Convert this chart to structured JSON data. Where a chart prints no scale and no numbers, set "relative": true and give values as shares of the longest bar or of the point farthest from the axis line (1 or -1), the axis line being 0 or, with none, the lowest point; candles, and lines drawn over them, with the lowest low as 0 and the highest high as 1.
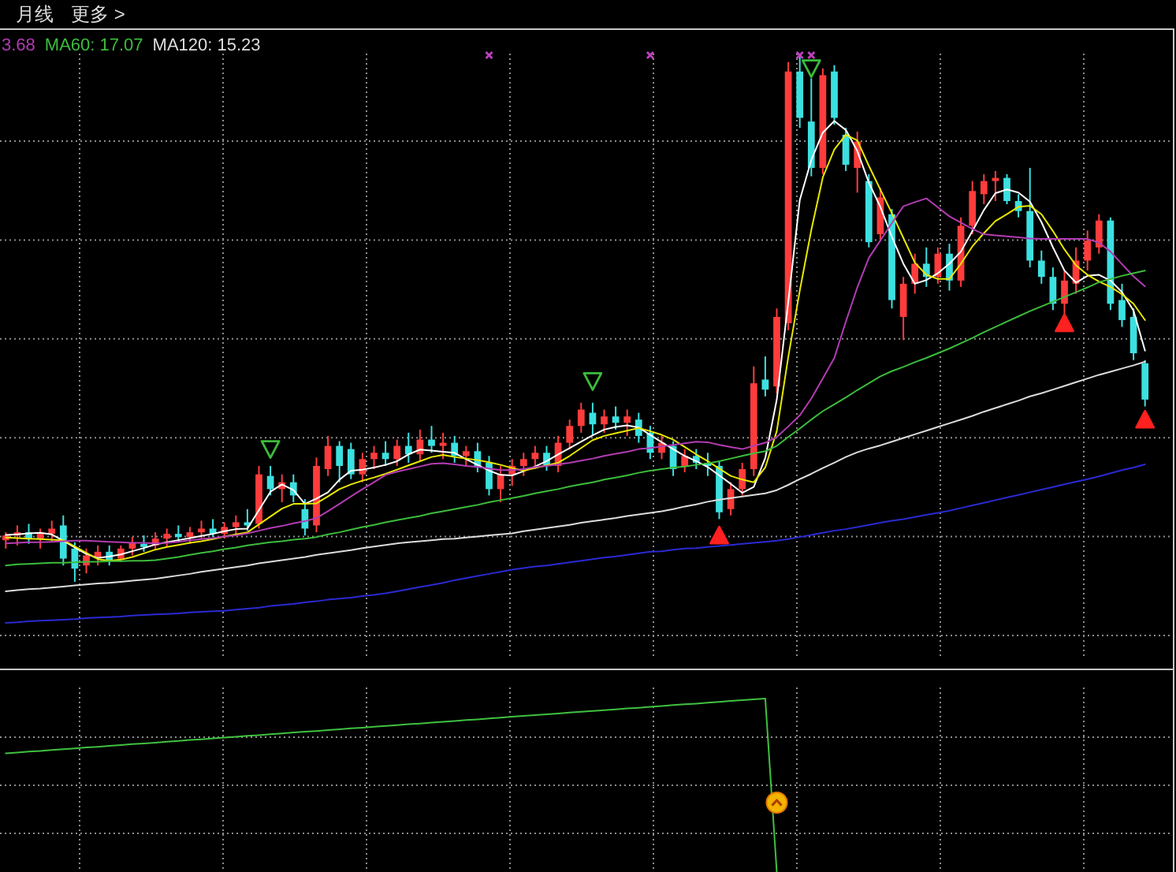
{
  "chart_data": [
    {
      "type": "candlestick",
      "title": "月线",
      "subtitle": "更多 >",
      "relative": true,
      "grid": true,
      "legend": "top left",
      "categories": [
        null,
        null,
        null,
        null,
        null,
        null,
        null,
        null,
        null,
        null,
        null,
        null,
        null,
        null,
        null,
        null,
        null,
        null,
        null,
        null,
        null,
        null,
        null,
        null,
        null,
        null,
        null,
        null,
        null,
        null,
        null,
        null,
        null,
        null,
        null,
        null,
        null,
        null,
        null,
        null,
        null,
        null,
        null,
        null,
        null,
        null,
        null,
        null,
        null,
        null,
        null,
        null,
        null,
        null,
        null,
        null,
        null,
        null,
        null,
        null,
        null,
        null,
        null,
        null,
        null,
        null,
        null,
        null,
        null,
        null,
        null,
        null,
        null,
        null,
        null,
        null,
        null,
        null,
        null,
        null,
        null,
        null,
        null,
        null,
        null,
        null,
        null,
        null,
        null,
        null,
        null,
        null,
        null,
        null,
        null,
        null,
        null,
        null,
        null,
        null
      ],
      "ohlc": [
        [
          0.079,
          0.094,
          0.063,
          0.088
        ],
        [
          0.088,
          0.107,
          0.069,
          0.094
        ],
        [
          0.094,
          0.11,
          0.072,
          0.082
        ],
        [
          0.082,
          0.101,
          0.063,
          0.091
        ],
        [
          0.091,
          0.116,
          0.075,
          0.101
        ],
        [
          0.107,
          0.126,
          0.031,
          0.044
        ],
        [
          0.063,
          0.075,
          0,
          0.025
        ],
        [
          0.031,
          0.063,
          0.016,
          0.05
        ],
        [
          0.047,
          0.069,
          0.031,
          0.057
        ],
        [
          0.057,
          0.069,
          0.031,
          0.041
        ],
        [
          0.044,
          0.069,
          0.038,
          0.063
        ],
        [
          0.063,
          0.085,
          0.05,
          0.075
        ],
        [
          0.072,
          0.088,
          0.057,
          0.066
        ],
        [
          0.069,
          0.094,
          0.06,
          0.082
        ],
        [
          0.082,
          0.101,
          0.066,
          0.091
        ],
        [
          0.091,
          0.107,
          0.075,
          0.085
        ],
        [
          0.085,
          0.104,
          0.072,
          0.094
        ],
        [
          0.094,
          0.116,
          0.082,
          0.101
        ],
        [
          0.101,
          0.119,
          0.085,
          0.091
        ],
        [
          0.091,
          0.113,
          0.082,
          0.104
        ],
        [
          0.104,
          0.126,
          0.091,
          0.113
        ],
        [
          0.113,
          0.138,
          0.097,
          0.107
        ],
        [
          0.11,
          0.22,
          0.101,
          0.204
        ],
        [
          0.201,
          0.22,
          0.164,
          0.176
        ],
        [
          0.176,
          0.204,
          0.151,
          0.189
        ],
        [
          0.189,
          0.204,
          0.151,
          0.164
        ],
        [
          0.138,
          0.157,
          0.088,
          0.101
        ],
        [
          0.107,
          0.236,
          0.094,
          0.22
        ],
        [
          0.214,
          0.277,
          0.201,
          0.258
        ],
        [
          0.258,
          0.267,
          0.189,
          0.22
        ],
        [
          0.252,
          0.264,
          0.195,
          0.204
        ],
        [
          0.204,
          0.245,
          0.189,
          0.233
        ],
        [
          0.233,
          0.258,
          0.214,
          0.245
        ],
        [
          0.245,
          0.267,
          0.22,
          0.233
        ],
        [
          0.233,
          0.27,
          0.22,
          0.258
        ],
        [
          0.258,
          0.283,
          0.226,
          0.242
        ],
        [
          0.242,
          0.289,
          0.23,
          0.27
        ],
        [
          0.27,
          0.296,
          0.245,
          0.258
        ],
        [
          0.258,
          0.283,
          0.233,
          0.264
        ],
        [
          0.264,
          0.277,
          0.226,
          0.239
        ],
        [
          0.239,
          0.258,
          0.22,
          0.248
        ],
        [
          0.248,
          0.264,
          0.208,
          0.22
        ],
        [
          0.226,
          0.239,
          0.164,
          0.176
        ],
        [
          0.176,
          0.22,
          0.151,
          0.204
        ],
        [
          0.204,
          0.233,
          0.182,
          0.22
        ],
        [
          0.22,
          0.245,
          0.201,
          0.233
        ],
        [
          0.233,
          0.258,
          0.214,
          0.245
        ],
        [
          0.245,
          0.258,
          0.211,
          0.22
        ],
        [
          0.22,
          0.277,
          0.208,
          0.264
        ],
        [
          0.264,
          0.308,
          0.252,
          0.296
        ],
        [
          0.296,
          0.34,
          0.283,
          0.327
        ],
        [
          0.321,
          0.34,
          0.277,
          0.299
        ],
        [
          0.299,
          0.327,
          0.283,
          0.314
        ],
        [
          0.314,
          0.333,
          0.289,
          0.302
        ],
        [
          0.302,
          0.327,
          0.277,
          0.314
        ],
        [
          0.308,
          0.321,
          0.264,
          0.277
        ],
        [
          0.283,
          0.296,
          0.233,
          0.245
        ],
        [
          0.245,
          0.277,
          0.233,
          0.264
        ],
        [
          0.258,
          0.267,
          0.201,
          0.214
        ],
        [
          0.22,
          0.252,
          0.208,
          0.239
        ],
        [
          0.239,
          0.252,
          0.214,
          0.226
        ],
        [
          0.226,
          0.245,
          0.201,
          0.22
        ],
        [
          0.22,
          0.23,
          0.119,
          0.132
        ],
        [
          0.138,
          0.189,
          0.126,
          0.176
        ],
        [
          0.176,
          0.226,
          0.164,
          0.214
        ],
        [
          0.214,
          0.409,
          0.201,
          0.377
        ],
        [
          0.384,
          0.428,
          0.352,
          0.365
        ],
        [
          0.371,
          0.519,
          0.358,
          0.503
        ],
        [
          0.491,
          0.987,
          0.478,
          0.969
        ],
        [
          0.969,
          1,
          0.862,
          0.881
        ],
        [
          0.874,
          0.956,
          0.77,
          0.786
        ],
        [
          0.786,
          0.975,
          0.774,
          0.962
        ],
        [
          0.969,
          0.981,
          0.868,
          0.881
        ],
        [
          0.849,
          0.862,
          0.78,
          0.792
        ],
        [
          0.786,
          0.855,
          0.739,
          0.836
        ],
        [
          0.761,
          0.774,
          0.635,
          0.645
        ],
        [
          0.66,
          0.748,
          0.648,
          0.73
        ],
        [
          0.698,
          0.708,
          0.519,
          0.535
        ],
        [
          0.503,
          0.579,
          0.459,
          0.566
        ],
        [
          0.566,
          0.623,
          0.547,
          0.604
        ],
        [
          0.604,
          0.635,
          0.56,
          0.579
        ],
        [
          0.579,
          0.635,
          0.566,
          0.623
        ],
        [
          0.623,
          0.642,
          0.553,
          0.572
        ],
        [
          0.572,
          0.692,
          0.56,
          0.676
        ],
        [
          0.676,
          0.761,
          0.66,
          0.742
        ],
        [
          0.736,
          0.774,
          0.717,
          0.761
        ],
        [
          0.761,
          0.78,
          0.723,
          0.767
        ],
        [
          0.767,
          0.774,
          0.717,
          0.723
        ],
        [
          0.723,
          0.736,
          0.692,
          0.704
        ],
        [
          0.704,
          0.786,
          0.597,
          0.61
        ],
        [
          0.61,
          0.629,
          0.566,
          0.579
        ],
        [
          0.579,
          0.597,
          0.516,
          0.528
        ],
        [
          0.528,
          0.591,
          0.509,
          0.572
        ],
        [
          0.566,
          0.635,
          0.547,
          0.61
        ],
        [
          0.61,
          0.667,
          0.591,
          0.648
        ],
        [
          0.635,
          0.698,
          0.623,
          0.686
        ],
        [
          0.686,
          0.692,
          0.516,
          0.528
        ],
        [
          0.535,
          0.566,
          0.484,
          0.497
        ],
        [
          0.503,
          0.519,
          0.421,
          0.434
        ],
        [
          0.415,
          0.421,
          0.333,
          0.346
        ]
      ],
      "colors": [
        "#ff3c3c",
        "#ff3c3c",
        "#3ce0e0",
        "#ff3c3c",
        "#ff3c3c",
        "#3ce0e0",
        "#3ce0e0",
        "#ff3c3c",
        "#ff3c3c",
        "#3ce0e0",
        "#ff3c3c",
        "#ff3c3c",
        "#3ce0e0",
        "#ff3c3c",
        "#ff3c3c",
        "#3ce0e0",
        "#ff3c3c",
        "#ff3c3c",
        "#3ce0e0",
        "#ff3c3c",
        "#ff3c3c",
        "#3ce0e0",
        "#ff3c3c",
        "#3ce0e0",
        "#ff3c3c",
        "#3ce0e0",
        "#3ce0e0",
        "#ff3c3c",
        "#ff3c3c",
        "#3ce0e0",
        "#3ce0e0",
        "#ff3c3c",
        "#ff3c3c",
        "#3ce0e0",
        "#ff3c3c",
        "#3ce0e0",
        "#ff3c3c",
        "#3ce0e0",
        "#ff3c3c",
        "#3ce0e0",
        "#ff3c3c",
        "#3ce0e0",
        "#3ce0e0",
        "#ff3c3c",
        "#ff3c3c",
        "#ff3c3c",
        "#ff3c3c",
        "#3ce0e0",
        "#ff3c3c",
        "#ff3c3c",
        "#ff3c3c",
        "#3ce0e0",
        "#ff3c3c",
        "#3ce0e0",
        "#ff3c3c",
        "#3ce0e0",
        "#3ce0e0",
        "#ff3c3c",
        "#3ce0e0",
        "#ff3c3c",
        "#3ce0e0",
        "#3ce0e0",
        "#3ce0e0",
        "#ff3c3c",
        "#ff3c3c",
        "#ff3c3c",
        "#3ce0e0",
        "#ff3c3c",
        "#ff3c3c",
        "#3ce0e0",
        "#3ce0e0",
        "#ff3c3c",
        "#3ce0e0",
        "#3ce0e0",
        "#ff3c3c",
        "#3ce0e0",
        "#ff3c3c",
        "#3ce0e0",
        "#ff3c3c",
        "#ff3c3c",
        "#3ce0e0",
        "#ff3c3c",
        "#3ce0e0",
        "#ff3c3c",
        "#ff3c3c",
        "#ff3c3c",
        "#ff3c3c",
        "#3ce0e0",
        "#3ce0e0",
        "#3ce0e0",
        "#3ce0e0",
        "#3ce0e0",
        "#ff3c3c",
        "#ff3c3c",
        "#ff3c3c",
        "#ff3c3c",
        "#3ce0e0",
        "#3ce0e0",
        "#3ce0e0",
        "#3ce0e0"
      ],
      "series": [
        {
          "type": "line",
          "color": "#ffffff",
          "values": [
            0.089,
            0.09,
            0.092,
            0.093,
            0.09,
            0.078,
            0.065,
            0.053,
            0.045,
            0.048,
            0.052,
            0.058,
            0.064,
            0.071,
            0.075,
            0.079,
            0.083,
            0.087,
            0.091,
            0.096,
            0.1,
            0.101,
            0.136,
            0.171,
            0.185,
            0.174,
            0.148,
            0.158,
            0.17,
            0.194,
            0.211,
            0.213,
            0.217,
            0.222,
            0.229,
            0.242,
            0.251,
            0.249,
            0.247,
            0.245,
            0.233,
            0.222,
            0.211,
            0.203,
            0.202,
            0.21,
            0.219,
            0.229,
            0.242,
            0.254,
            0.266,
            0.278,
            0.289,
            0.294,
            0.297,
            0.293,
            0.279,
            0.265,
            0.252,
            0.239,
            0.229,
            0.218,
            0.202,
            0.186,
            0.169,
            0.18,
            0.235,
            0.346,
            0.532,
            0.725,
            0.801,
            0.853,
            0.875,
            0.858,
            0.818,
            0.758,
            0.712,
            0.655,
            0.604,
            0.566,
            0.573,
            0.586,
            0.604,
            0.627,
            0.666,
            0.706,
            0.738,
            0.745,
            0.739,
            0.722,
            0.683,
            0.635,
            0.591,
            0.568,
            0.581,
            0.583,
            0.572,
            0.55,
            0.515,
            0.439
          ]
        },
        {
          "type": "line",
          "color": "#e8e800",
          "values": [
            0.084,
            0.083,
            0.082,
            0.081,
            0.08,
            0.079,
            0.067,
            0.055,
            0.043,
            0.04,
            0.042,
            0.047,
            0.054,
            0.061,
            0.066,
            0.07,
            0.074,
            0.077,
            0.081,
            0.086,
            0.09,
            0.094,
            0.109,
            0.124,
            0.139,
            0.148,
            0.148,
            0.149,
            0.162,
            0.176,
            0.185,
            0.192,
            0.198,
            0.205,
            0.213,
            0.221,
            0.229,
            0.237,
            0.241,
            0.237,
            0.234,
            0.231,
            0.227,
            0.222,
            0.216,
            0.211,
            0.216,
            0.221,
            0.226,
            0.239,
            0.254,
            0.269,
            0.277,
            0.282,
            0.287,
            0.292,
            0.286,
            0.279,
            0.27,
            0.256,
            0.242,
            0.229,
            0.215,
            0.201,
            0.194,
            0.189,
            0.217,
            0.286,
            0.427,
            0.553,
            0.668,
            0.768,
            0.821,
            0.849,
            0.838,
            0.79,
            0.745,
            0.7,
            0.653,
            0.606,
            0.583,
            0.575,
            0.575,
            0.604,
            0.637,
            0.662,
            0.685,
            0.698,
            0.712,
            0.714,
            0.698,
            0.666,
            0.631,
            0.601,
            0.583,
            0.57,
            0.56,
            0.546,
            0.528,
            0.497
          ]
        },
        {
          "type": "line",
          "name": "3.68",
          "color": "#b23cb2",
          "values": [
            0.073,
            0.074,
            0.075,
            0.075,
            0.076,
            0.077,
            0.078,
            0.078,
            0.077,
            0.076,
            0.075,
            0.074,
            0.074,
            0.073,
            0.074,
            0.076,
            0.079,
            0.081,
            0.083,
            0.086,
            0.088,
            0.092,
            0.097,
            0.102,
            0.106,
            0.111,
            0.115,
            0.121,
            0.134,
            0.148,
            0.162,
            0.176,
            0.189,
            0.203,
            0.209,
            0.214,
            0.219,
            0.224,
            0.225,
            0.223,
            0.22,
            0.218,
            0.215,
            0.212,
            0.212,
            0.214,
            0.218,
            0.22,
            0.223,
            0.226,
            0.23,
            0.234,
            0.239,
            0.243,
            0.247,
            0.252,
            0.254,
            0.257,
            0.26,
            0.263,
            0.266,
            0.265,
            0.26,
            0.256,
            0.252,
            0.258,
            0.264,
            0.275,
            0.295,
            0.316,
            0.348,
            0.386,
            0.425,
            0.494,
            0.559,
            0.615,
            0.648,
            0.681,
            0.713,
            0.721,
            0.728,
            0.711,
            0.694,
            0.682,
            0.67,
            0.66,
            0.658,
            0.656,
            0.654,
            0.652,
            0.651,
            0.651,
            0.651,
            0.651,
            0.651,
            0.644,
            0.627,
            0.603,
            0.58,
            0.561
          ]
        },
        {
          "type": "line",
          "name": "MA60: 17.07",
          "color": "#3cbc3c",
          "values": [
            0.031,
            0.033,
            0.034,
            0.035,
            0.036,
            0.036,
            0.037,
            0.038,
            0.038,
            0.039,
            0.039,
            0.04,
            0.04,
            0.041,
            0.044,
            0.047,
            0.051,
            0.055,
            0.058,
            0.062,
            0.065,
            0.069,
            0.072,
            0.075,
            0.077,
            0.08,
            0.082,
            0.085,
            0.09,
            0.094,
            0.099,
            0.104,
            0.108,
            0.113,
            0.117,
            0.121,
            0.125,
            0.13,
            0.134,
            0.138,
            0.142,
            0.146,
            0.151,
            0.155,
            0.159,
            0.163,
            0.168,
            0.172,
            0.176,
            0.181,
            0.185,
            0.189,
            0.194,
            0.198,
            0.202,
            0.207,
            0.211,
            0.214,
            0.217,
            0.219,
            0.222,
            0.225,
            0.229,
            0.234,
            0.239,
            0.244,
            0.248,
            0.258,
            0.275,
            0.291,
            0.308,
            0.324,
            0.337,
            0.35,
            0.364,
            0.377,
            0.39,
            0.4,
            0.408,
            0.417,
            0.425,
            0.434,
            0.443,
            0.453,
            0.463,
            0.474,
            0.484,
            0.494,
            0.504,
            0.514,
            0.523,
            0.532,
            0.541,
            0.55,
            0.559,
            0.569,
            0.575,
            0.581,
            0.586,
            0.591
          ]
        },
        {
          "type": "line",
          "name": "MA120: 15.23",
          "color": "#dcdcdc",
          "values": [
            -0.018,
            -0.016,
            -0.014,
            -0.013,
            -0.011,
            -0.009,
            -0.007,
            -0.005,
            -0.003,
            -0.002,
            0.0,
            0.002,
            0.004,
            0.006,
            0.009,
            0.012,
            0.015,
            0.019,
            0.022,
            0.025,
            0.028,
            0.031,
            0.035,
            0.038,
            0.041,
            0.044,
            0.047,
            0.051,
            0.054,
            0.057,
            0.06,
            0.064,
            0.067,
            0.07,
            0.073,
            0.075,
            0.077,
            0.079,
            0.081,
            0.082,
            0.084,
            0.086,
            0.088,
            0.09,
            0.092,
            0.096,
            0.099,
            0.102,
            0.105,
            0.108,
            0.112,
            0.115,
            0.118,
            0.121,
            0.125,
            0.128,
            0.131,
            0.134,
            0.138,
            0.143,
            0.147,
            0.152,
            0.156,
            0.159,
            0.162,
            0.165,
            0.168,
            0.174,
            0.184,
            0.195,
            0.205,
            0.216,
            0.226,
            0.237,
            0.246,
            0.253,
            0.259,
            0.266,
            0.273,
            0.28,
            0.287,
            0.294,
            0.301,
            0.308,
            0.315,
            0.323,
            0.33,
            0.337,
            0.344,
            0.352,
            0.358,
            0.365,
            0.372,
            0.379,
            0.386,
            0.393,
            0.399,
            0.405,
            0.411,
            0.418
          ]
        },
        {
          "type": "line",
          "color": "#2a2ad2",
          "values": [
            -0.078,
            -0.077,
            -0.075,
            -0.074,
            -0.073,
            -0.072,
            -0.071,
            -0.069,
            -0.068,
            -0.067,
            -0.066,
            -0.064,
            -0.063,
            -0.062,
            -0.061,
            -0.06,
            -0.058,
            -0.057,
            -0.056,
            -0.055,
            -0.053,
            -0.051,
            -0.049,
            -0.046,
            -0.044,
            -0.042,
            -0.039,
            -0.037,
            -0.034,
            -0.032,
            -0.03,
            -0.027,
            -0.025,
            -0.022,
            -0.018,
            -0.014,
            -0.01,
            -0.006,
            -0.002,
            0.003,
            0.007,
            0.011,
            0.015,
            0.019,
            0.023,
            0.026,
            0.029,
            0.031,
            0.034,
            0.037,
            0.04,
            0.043,
            0.046,
            0.048,
            0.051,
            0.054,
            0.057,
            0.058,
            0.061,
            0.063,
            0.064,
            0.066,
            0.068,
            0.07,
            0.072,
            0.074,
            0.076,
            0.078,
            0.081,
            0.085,
            0.089,
            0.093,
            0.097,
            0.1,
            0.104,
            0.108,
            0.112,
            0.116,
            0.119,
            0.123,
            0.127,
            0.131,
            0.135,
            0.14,
            0.145,
            0.15,
            0.155,
            0.16,
            0.165,
            0.17,
            0.175,
            0.18,
            0.185,
            0.19,
            0.195,
            0.2,
            0.206,
            0.212,
            0.217,
            0.223
          ]
        },
        {
          "type": "scatter",
          "marker": "triangle",
          "color": "#3cbc3c",
          "values": [
            null,
            null,
            null,
            null,
            null,
            null,
            null,
            null,
            null,
            null,
            null,
            null,
            null,
            null,
            null,
            null,
            null,
            null,
            null,
            null,
            null,
            null,
            null,
            0.252,
            null,
            null,
            null,
            null,
            null,
            null,
            null,
            null,
            null,
            null,
            null,
            null,
            null,
            null,
            null,
            null,
            null,
            null,
            null,
            null,
            null,
            null,
            null,
            null,
            null,
            null,
            null,
            0.381,
            null,
            null,
            null,
            null,
            null,
            null,
            null,
            null,
            null,
            null,
            null,
            null,
            null,
            null,
            null,
            null,
            null,
            null,
            0.975,
            null,
            null,
            null,
            null,
            null,
            null,
            null,
            null,
            null,
            null,
            null,
            null,
            null,
            null,
            null,
            null,
            null,
            null,
            null,
            null,
            null,
            null,
            null,
            null,
            null,
            null,
            null,
            null,
            null
          ]
        },
        {
          "type": "scatter",
          "marker": "triangle",
          "color": "#ff2020",
          "values": [
            null,
            null,
            null,
            null,
            null,
            null,
            null,
            null,
            null,
            null,
            null,
            null,
            null,
            null,
            null,
            null,
            null,
            null,
            null,
            null,
            null,
            null,
            null,
            null,
            null,
            null,
            null,
            null,
            null,
            null,
            null,
            null,
            null,
            null,
            null,
            null,
            null,
            null,
            null,
            null,
            null,
            null,
            null,
            null,
            null,
            null,
            null,
            null,
            null,
            null,
            null,
            null,
            null,
            null,
            null,
            null,
            null,
            null,
            null,
            null,
            null,
            null,
            0.088,
            null,
            null,
            null,
            null,
            null,
            null,
            null,
            null,
            null,
            null,
            null,
            null,
            null,
            null,
            null,
            null,
            null,
            null,
            null,
            null,
            null,
            null,
            null,
            null,
            null,
            null,
            null,
            null,
            null,
            0.491,
            null,
            null,
            null,
            null,
            null,
            null,
            0.308
          ]
        },
        {
          "type": "scatter",
          "marker": "cross",
          "color": "#c040c0",
          "values": [
            null,
            null,
            null,
            null,
            null,
            null,
            null,
            null,
            null,
            null,
            null,
            null,
            null,
            null,
            null,
            null,
            null,
            null,
            null,
            null,
            null,
            null,
            null,
            null,
            null,
            null,
            null,
            null,
            null,
            null,
            null,
            null,
            null,
            null,
            null,
            null,
            null,
            null,
            null,
            null,
            null,
            null,
            1,
            null,
            null,
            null,
            null,
            null,
            null,
            null,
            null,
            null,
            null,
            null,
            null,
            null,
            1,
            null,
            null,
            null,
            null,
            null,
            null,
            null,
            null,
            null,
            null,
            null,
            null,
            1,
            1,
            null,
            null,
            null,
            null,
            null,
            null,
            null,
            null,
            null,
            null,
            null,
            null,
            null,
            null,
            null,
            null,
            null,
            null,
            null,
            null,
            null,
            null,
            null,
            null,
            null,
            null,
            null,
            null,
            null
          ]
        }
      ]
    },
    {
      "type": "line",
      "relative": true,
      "grid": true,
      "categories": [
        null,
        null,
        null,
        null,
        null,
        null,
        null,
        null,
        null,
        null,
        null,
        null,
        null,
        null,
        null,
        null,
        null,
        null,
        null,
        null,
        null,
        null,
        null,
        null,
        null,
        null,
        null,
        null,
        null,
        null,
        null,
        null,
        null,
        null,
        null,
        null,
        null,
        null,
        null,
        null,
        null,
        null,
        null,
        null,
        null,
        null,
        null,
        null,
        null,
        null,
        null,
        null,
        null,
        null,
        null,
        null,
        null,
        null,
        null,
        null,
        null,
        null,
        null,
        null,
        null,
        null,
        null,
        null,
        null,
        null,
        null,
        null,
        null,
        null,
        null,
        null,
        null,
        null,
        null,
        null,
        null,
        null,
        null,
        null,
        null,
        null,
        null,
        null,
        null,
        null,
        null,
        null,
        null,
        null,
        null,
        null,
        null,
        null,
        null,
        null
      ],
      "series": [
        {
          "color": "#40c040",
          "values": [
            0.684,
            0.689,
            0.694,
            0.698,
            0.703,
            0.708,
            0.713,
            0.718,
            0.722,
            0.727,
            0.732,
            0.737,
            0.741,
            0.746,
            0.751,
            0.756,
            0.761,
            0.765,
            0.77,
            0.775,
            0.78,
            0.785,
            0.789,
            0.794,
            0.799,
            0.804,
            0.809,
            0.813,
            0.818,
            0.823,
            0.828,
            0.832,
            0.837,
            0.842,
            0.847,
            0.852,
            0.856,
            0.861,
            0.866,
            0.871,
            0.876,
            0.88,
            0.885,
            0.89,
            0.895,
            0.9,
            0.904,
            0.909,
            0.914,
            0.919,
            0.924,
            0.928,
            0.933,
            0.938,
            0.943,
            0.947,
            0.952,
            0.957,
            0.962,
            0.967,
            0.971,
            0.976,
            0.981,
            0.986,
            0.991,
            0.995,
            1.0,
            0,
            null,
            null,
            null,
            null,
            null,
            null,
            null,
            null,
            null,
            null,
            null,
            null,
            null,
            null,
            null,
            null,
            null,
            null,
            null,
            null,
            null,
            null,
            null,
            null,
            null,
            null,
            null,
            null,
            null,
            null,
            null,
            null
          ]
        },
        {
          "type": "scatter",
          "marker": "circle",
          "color": "#f2b400",
          "values": [
            null,
            null,
            null,
            null,
            null,
            null,
            null,
            null,
            null,
            null,
            null,
            null,
            null,
            null,
            null,
            null,
            null,
            null,
            null,
            null,
            null,
            null,
            null,
            null,
            null,
            null,
            null,
            null,
            null,
            null,
            null,
            null,
            null,
            null,
            null,
            null,
            null,
            null,
            null,
            null,
            null,
            null,
            null,
            null,
            null,
            null,
            null,
            null,
            null,
            null,
            null,
            null,
            null,
            null,
            null,
            null,
            null,
            null,
            null,
            null,
            null,
            null,
            null,
            null,
            null,
            null,
            null,
            0.4,
            null,
            null,
            null,
            null,
            null,
            null,
            null,
            null,
            null,
            null,
            null,
            null,
            null,
            null,
            null,
            null,
            null,
            null,
            null,
            null,
            null,
            null,
            null,
            null,
            null,
            null,
            null,
            null,
            null,
            null,
            null,
            null
          ]
        }
      ]
    }
  ]
}
